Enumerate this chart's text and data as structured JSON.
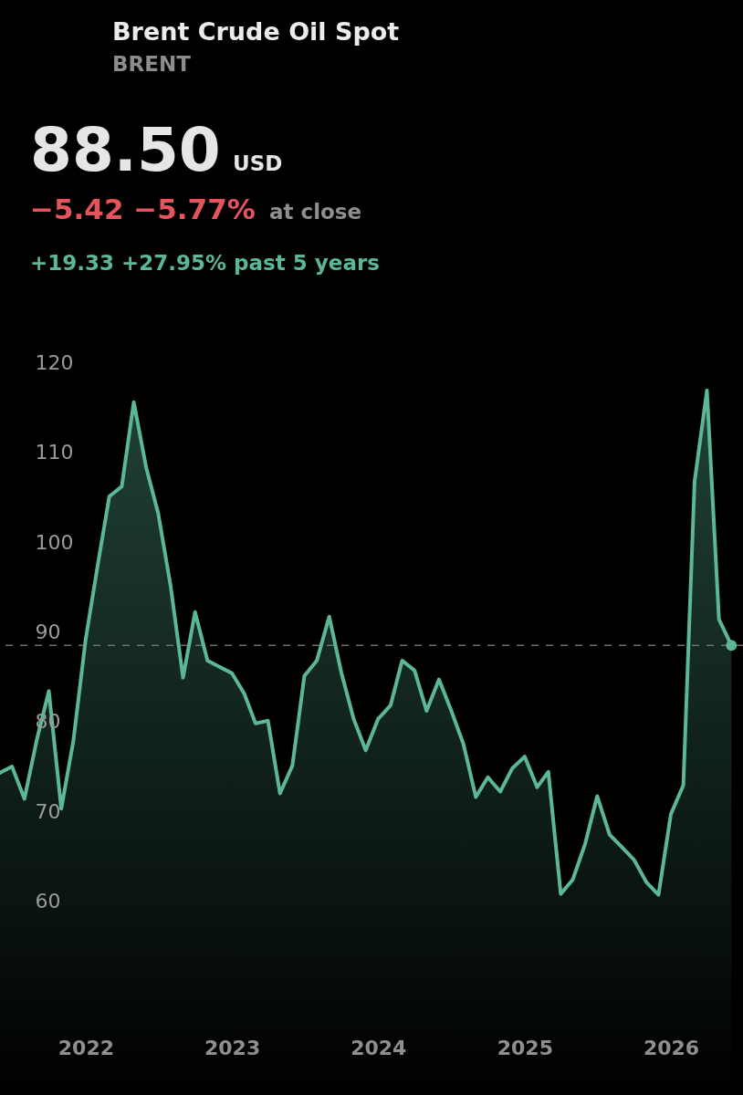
{
  "chart_data": {
    "type": "area",
    "title": "Brent Crude Oil Spot",
    "subtitle": "BRENT",
    "annotations": [
      "88.50",
      "USD",
      "−5.42 −5.77%",
      "at close",
      "+19.33 +27.95% past 5 years"
    ],
    "x": [
      "2021-06",
      "2021-07",
      "2021-08",
      "2021-09",
      "2021-10",
      "2021-11",
      "2021-12",
      "2022-01",
      "2022-02",
      "2022-03",
      "2022-04",
      "2022-05",
      "2022-06",
      "2022-07",
      "2022-08",
      "2022-09",
      "2022-10",
      "2022-11",
      "2022-12",
      "2023-01",
      "2023-02",
      "2023-03",
      "2023-04",
      "2023-05",
      "2023-06",
      "2023-07",
      "2023-08",
      "2023-09",
      "2023-10",
      "2023-11",
      "2023-12",
      "2024-01",
      "2024-02",
      "2024-03",
      "2024-04",
      "2024-05",
      "2024-06",
      "2024-07",
      "2024-08",
      "2024-09",
      "2024-10",
      "2024-11",
      "2024-12",
      "2025-01",
      "2025-02",
      "2025-03",
      "2025-04",
      "2025-05",
      "2025-06",
      "2025-07",
      "2025-08",
      "2025-09",
      "2025-10",
      "2025-11",
      "2025-12",
      "2026-01",
      "2026-02",
      "2026-03",
      "2026-04",
      "2026-05",
      "2026-06"
    ],
    "series": [
      {
        "color": "#5bb69a",
        "values": [
          74.3,
          75.0,
          71.4,
          78.0,
          83.4,
          70.3,
          77.8,
          89.2,
          97.7,
          105.1,
          106.2,
          115.6,
          108.3,
          103.2,
          95.1,
          84.9,
          92.2,
          86.8,
          86.1,
          85.4,
          83.1,
          79.8,
          80.1,
          72.0,
          75.1,
          85.1,
          86.8,
          91.7,
          85.5,
          80.3,
          76.8,
          80.3,
          81.8,
          86.8,
          85.7,
          81.2,
          84.7,
          81.3,
          77.5,
          71.6,
          73.8,
          72.2,
          74.8,
          76.1,
          72.7,
          74.4,
          60.8,
          62.4,
          66.4,
          71.7,
          67.4,
          66.0,
          64.6,
          62.1,
          60.7,
          69.7,
          72.9,
          106.7,
          116.9,
          91.4,
          88.5
        ]
      },
      {
        "type": "scatter",
        "color": "#5bb69a",
        "x": [
          "2026-06"
        ],
        "values": [
          88.5
        ]
      }
    ],
    "xlim": [
      "2021-06-01",
      "2026-06-30"
    ],
    "xticks": [
      "2022",
      "2023",
      "2024",
      "2025",
      "2026"
    ],
    "ylim": [
      38.4,
      160.4
    ],
    "yticks": [
      60,
      70,
      80,
      90,
      100,
      110,
      120
    ],
    "ref_lines": [
      {
        "axis": "y",
        "value": 88.5,
        "color": "#6e6e6e",
        "line_style": "dashed"
      }
    ],
    "grid": false
  }
}
